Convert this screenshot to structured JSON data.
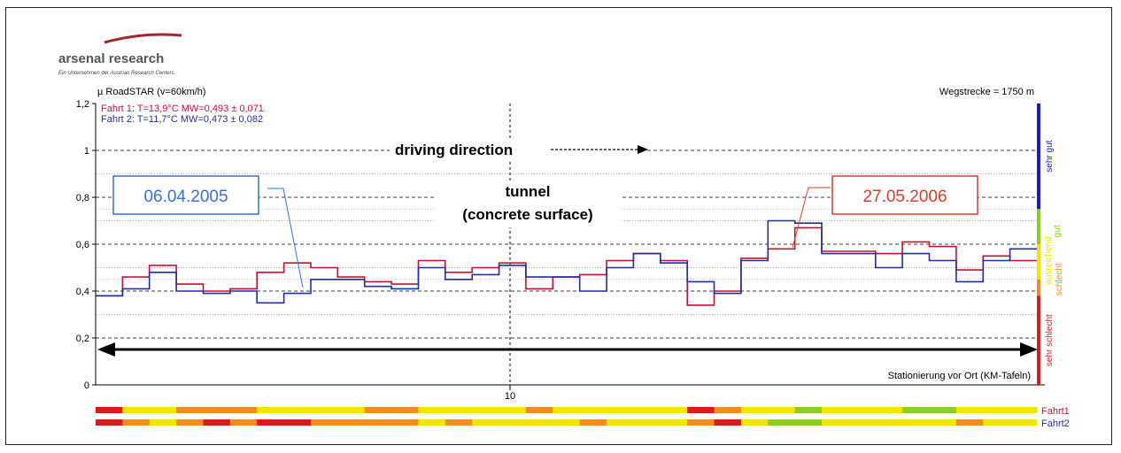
{
  "logo": {
    "brand": "arsenal research",
    "tagline": "Ein Unternehmen der Austrian Research Centers."
  },
  "header": {
    "left": "µ RoadSTAR (v=60km/h)",
    "right": "Wegstrecke = 1750 m"
  },
  "legend": [
    {
      "text": "Fahrt 1: T=13,9°C MW=0,493 ± 0,071",
      "color": "#c8102e"
    },
    {
      "text": "Fahrt 2: T=11,7°C MW=0,473 ± 0,082",
      "color": "#1f2f9e"
    }
  ],
  "annotations": {
    "driving_direction": "driving direction",
    "tunnel_line1": "tunnel",
    "tunnel_line2": "(concrete surface)",
    "date_blue": "06.04.2005",
    "date_red": "27.05.2006",
    "stationing": "Stationierung vor Ort (KM-Tafeln)"
  },
  "rating_labels": {
    "sehr_gut": "sehr gut",
    "gut": "gut",
    "ausreichend": "ausreichend",
    "schlecht": "schlecht",
    "sehr_schlecht": "sehr schlecht"
  },
  "colors": {
    "fahrt1": "#c8102e",
    "fahrt2": "#1f2f9e",
    "sehr_gut": "#1a1acc",
    "gut": "#8ccf1e",
    "ausreichend": "#f2e600",
    "schlecht": "#f28c1e",
    "sehr_schlecht": "#dd1a1a",
    "box_blue": "#3a6fd8",
    "box_red": "#e23a2a"
  },
  "chart_data": {
    "type": "line",
    "ylabel": "µ RoadSTAR (v=60km/h)",
    "ylim": [
      0,
      1.2
    ],
    "yticks": [
      "0",
      "0,2",
      "0,4",
      "0,6",
      "0,8",
      "1",
      "1,2"
    ],
    "x_tick_label": "10",
    "xlabel": "Stationierung vor Ort (KM-Tafeln)",
    "segments": 35,
    "series": [
      {
        "name": "Fahrt1",
        "values": [
          0.38,
          0.46,
          0.51,
          0.43,
          0.4,
          0.41,
          0.48,
          0.52,
          0.5,
          0.46,
          0.44,
          0.43,
          0.53,
          0.48,
          0.5,
          0.52,
          0.41,
          0.46,
          0.47,
          0.53,
          0.56,
          0.53,
          0.34,
          0.4,
          0.54,
          0.58,
          0.67,
          0.57,
          0.57,
          0.56,
          0.61,
          0.59,
          0.49,
          0.55,
          0.53
        ]
      },
      {
        "name": "Fahrt2",
        "values": [
          0.38,
          0.41,
          0.48,
          0.4,
          0.39,
          0.4,
          0.35,
          0.39,
          0.45,
          0.45,
          0.42,
          0.41,
          0.5,
          0.45,
          0.47,
          0.51,
          0.46,
          0.46,
          0.4,
          0.5,
          0.56,
          0.52,
          0.44,
          0.39,
          0.53,
          0.7,
          0.69,
          0.56,
          0.56,
          0.5,
          0.56,
          0.53,
          0.44,
          0.53,
          0.58
        ]
      }
    ],
    "rating_bars": {
      "labels": [
        "Fahrt1",
        "Fahrt2"
      ],
      "rows": [
        [
          "sehr_schlecht",
          "ausreichend",
          "ausreichend",
          "schlecht",
          "schlecht",
          "schlecht",
          "ausreichend",
          "ausreichend",
          "ausreichend",
          "ausreichend",
          "schlecht",
          "schlecht",
          "ausreichend",
          "ausreichend",
          "ausreichend",
          "ausreichend",
          "schlecht",
          "ausreichend",
          "ausreichend",
          "ausreichend",
          "ausreichend",
          "ausreichend",
          "sehr_schlecht",
          "schlecht",
          "ausreichend",
          "ausreichend",
          "gut",
          "ausreichend",
          "ausreichend",
          "ausreichend",
          "gut",
          "gut",
          "ausreichend",
          "ausreichend",
          "ausreichend"
        ],
        [
          "sehr_schlecht",
          "schlecht",
          "ausreichend",
          "schlecht",
          "sehr_schlecht",
          "schlecht",
          "sehr_schlecht",
          "sehr_schlecht",
          "schlecht",
          "schlecht",
          "schlecht",
          "schlecht",
          "ausreichend",
          "schlecht",
          "ausreichend",
          "ausreichend",
          "ausreichend",
          "ausreichend",
          "schlecht",
          "ausreichend",
          "ausreichend",
          "ausreichend",
          "schlecht",
          "sehr_schlecht",
          "ausreichend",
          "gut",
          "gut",
          "ausreichend",
          "ausreichend",
          "ausreichend",
          "ausreichend",
          "ausreichend",
          "schlecht",
          "ausreichend",
          "ausreichend"
        ]
      ]
    },
    "grid": true
  }
}
